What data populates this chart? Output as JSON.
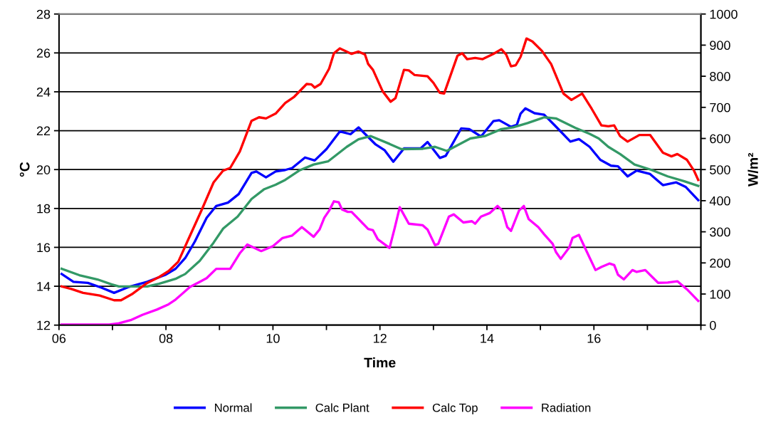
{
  "chart_data": {
    "type": "line",
    "xlabel": "Time",
    "ylabel": "°C",
    "y2label": "W/m²",
    "xlim": [
      6,
      18
    ],
    "xticks": [
      {
        "value": 6,
        "label": "06"
      },
      {
        "value": 7,
        "label": null
      },
      {
        "value": 8,
        "label": "08"
      },
      {
        "value": 9,
        "label": null
      },
      {
        "value": 10,
        "label": "10"
      },
      {
        "value": 11,
        "label": null
      },
      {
        "value": 12,
        "label": "12"
      },
      {
        "value": 13,
        "label": null
      },
      {
        "value": 14,
        "label": "14"
      },
      {
        "value": 15,
        "label": null
      },
      {
        "value": 16,
        "label": "16"
      },
      {
        "value": 17,
        "label": null
      },
      {
        "value": 18,
        "label": null
      }
    ],
    "ylim": [
      12,
      28
    ],
    "yticks": [
      12,
      14,
      16,
      18,
      20,
      22,
      24,
      26,
      28
    ],
    "y2lim": [
      0,
      1000
    ],
    "y2ticks": [
      0,
      100,
      200,
      300,
      400,
      500,
      600,
      700,
      800,
      900,
      1000
    ],
    "grid": "y",
    "legend": "bottom",
    "marker": "none",
    "line_style": "solid",
    "series": [
      {
        "name": "Normal",
        "color": "#0000ff",
        "x": [
          6.05,
          6.27,
          6.54,
          6.8,
          7.03,
          7.29,
          7.65,
          8.0,
          8.18,
          8.36,
          8.54,
          8.76,
          8.94,
          9.16,
          9.36,
          9.6,
          9.69,
          9.87,
          10.05,
          10.23,
          10.36,
          10.6,
          10.78,
          11.0,
          11.25,
          11.45,
          11.6,
          11.92,
          12.09,
          12.25,
          12.45,
          12.76,
          12.89,
          13.12,
          13.23,
          13.52,
          13.67,
          13.89,
          14.12,
          14.23,
          14.45,
          14.56,
          14.63,
          14.72,
          14.89,
          15.07,
          15.27,
          15.56,
          15.72,
          15.92,
          16.12,
          16.32,
          16.45,
          16.63,
          16.8,
          17.05,
          17.29,
          17.54,
          17.72,
          17.95
        ],
        "values": [
          14.63,
          14.23,
          14.17,
          13.92,
          13.66,
          13.95,
          14.23,
          14.6,
          14.9,
          15.45,
          16.3,
          17.52,
          18.13,
          18.3,
          18.74,
          19.83,
          19.9,
          19.6,
          19.9,
          19.98,
          20.08,
          20.62,
          20.47,
          21.05,
          21.96,
          21.82,
          22.17,
          21.29,
          20.99,
          20.4,
          21.09,
          21.09,
          21.42,
          20.6,
          20.71,
          22.12,
          22.08,
          21.7,
          22.49,
          22.54,
          22.2,
          22.3,
          22.88,
          23.15,
          22.9,
          22.82,
          22.27,
          21.44,
          21.57,
          21.17,
          20.5,
          20.2,
          20.17,
          19.65,
          19.95,
          19.77,
          19.2,
          19.34,
          19.1,
          18.43
        ]
      },
      {
        "name": "Calc Plant",
        "color": "#339966",
        "x": [
          6.05,
          6.38,
          6.72,
          6.98,
          7.12,
          7.65,
          7.87,
          8.18,
          8.36,
          8.63,
          8.89,
          9.07,
          9.34,
          9.6,
          9.83,
          10.05,
          10.23,
          10.49,
          10.76,
          11.03,
          11.38,
          11.6,
          11.83,
          12.18,
          12.4,
          12.8,
          13.03,
          13.25,
          13.52,
          13.69,
          13.96,
          14.27,
          14.49,
          14.76,
          15.07,
          15.29,
          15.65,
          15.92,
          16.09,
          16.27,
          16.49,
          16.76,
          17.07,
          17.38,
          17.69,
          17.95
        ],
        "values": [
          14.9,
          14.57,
          14.35,
          14.1,
          13.99,
          13.99,
          14.13,
          14.38,
          14.63,
          15.3,
          16.24,
          16.97,
          17.58,
          18.49,
          18.98,
          19.22,
          19.47,
          19.95,
          20.26,
          20.42,
          21.17,
          21.56,
          21.72,
          21.32,
          21.05,
          21.07,
          21.17,
          20.96,
          21.35,
          21.6,
          21.72,
          22.08,
          22.17,
          22.39,
          22.69,
          22.63,
          22.15,
          21.84,
          21.6,
          21.17,
          20.8,
          20.26,
          19.99,
          19.65,
          19.4,
          19.16
        ]
      },
      {
        "name": "Calc Top",
        "color": "#ff0000",
        "x": [
          6.05,
          6.23,
          6.45,
          6.76,
          7.03,
          7.16,
          7.38,
          7.65,
          7.87,
          8.05,
          8.23,
          8.4,
          8.67,
          8.89,
          9.07,
          9.2,
          9.38,
          9.6,
          9.74,
          9.87,
          10.05,
          10.23,
          10.4,
          10.63,
          10.72,
          10.78,
          10.89,
          11.05,
          11.14,
          11.25,
          11.47,
          11.6,
          11.72,
          11.78,
          11.87,
          12.05,
          12.2,
          12.29,
          12.45,
          12.54,
          12.65,
          12.89,
          13.0,
          13.12,
          13.2,
          13.45,
          13.54,
          13.63,
          13.78,
          13.92,
          14.12,
          14.27,
          14.36,
          14.45,
          14.54,
          14.63,
          14.74,
          14.85,
          15.03,
          15.2,
          15.43,
          15.58,
          15.78,
          15.96,
          16.14,
          16.27,
          16.38,
          16.49,
          16.63,
          16.85,
          17.05,
          17.29,
          17.45,
          17.56,
          17.74,
          17.87,
          17.95
        ],
        "values": [
          13.99,
          13.86,
          13.66,
          13.52,
          13.28,
          13.28,
          13.62,
          14.17,
          14.47,
          14.78,
          15.26,
          16.3,
          17.94,
          19.34,
          19.95,
          20.08,
          20.93,
          22.51,
          22.69,
          22.63,
          22.88,
          23.43,
          23.75,
          24.4,
          24.38,
          24.22,
          24.4,
          25.19,
          25.98,
          26.23,
          25.95,
          26.07,
          25.92,
          25.43,
          25.13,
          24.03,
          23.49,
          23.67,
          25.13,
          25.1,
          24.86,
          24.8,
          24.46,
          23.95,
          23.91,
          25.86,
          25.98,
          25.68,
          25.74,
          25.68,
          25.95,
          26.19,
          25.92,
          25.31,
          25.37,
          25.8,
          26.74,
          26.59,
          26.1,
          25.43,
          23.91,
          23.58,
          23.91,
          23.12,
          22.27,
          22.23,
          22.27,
          21.72,
          21.44,
          21.78,
          21.78,
          20.87,
          20.68,
          20.8,
          20.5,
          19.95,
          19.47
        ]
      },
      {
        "name": "Radiation",
        "color": "#ff00ff",
        "axis": "y2",
        "x": [
          6.05,
          6.94,
          7.12,
          7.34,
          7.56,
          7.83,
          8.05,
          8.18,
          8.45,
          8.63,
          8.76,
          8.94,
          9.2,
          9.38,
          9.52,
          9.78,
          10.0,
          10.18,
          10.36,
          10.54,
          10.76,
          10.87,
          10.96,
          11.05,
          11.14,
          11.23,
          11.29,
          11.4,
          11.47,
          11.6,
          11.78,
          11.87,
          11.96,
          12.18,
          12.28,
          12.37,
          12.54,
          12.8,
          12.89,
          13.03,
          13.09,
          13.29,
          13.38,
          13.56,
          13.72,
          13.78,
          13.89,
          14.05,
          14.2,
          14.29,
          14.38,
          14.45,
          14.6,
          14.69,
          14.78,
          14.96,
          15.07,
          15.23,
          15.29,
          15.38,
          15.54,
          15.6,
          15.72,
          15.87,
          16.03,
          16.14,
          16.29,
          16.38,
          16.45,
          16.56,
          16.72,
          16.8,
          16.96,
          17.2,
          17.38,
          17.56,
          17.74,
          17.95
        ],
        "values": [
          2,
          2,
          6,
          16,
          33,
          50,
          67,
          82,
          123,
          139,
          151,
          181,
          181,
          231,
          259,
          238,
          254,
          280,
          288,
          315,
          284,
          307,
          345,
          368,
          398,
          395,
          372,
          364,
          364,
          341,
          309,
          305,
          276,
          248,
          315,
          379,
          326,
          321,
          307,
          257,
          261,
          349,
          356,
          330,
          334,
          326,
          349,
          360,
          383,
          368,
          315,
          303,
          368,
          383,
          341,
          315,
          292,
          261,
          235,
          213,
          250,
          280,
          290,
          235,
          177,
          187,
          198,
          193,
          162,
          147,
          177,
          171,
          177,
          136,
          137,
          141,
          115,
          78
        ]
      }
    ]
  }
}
